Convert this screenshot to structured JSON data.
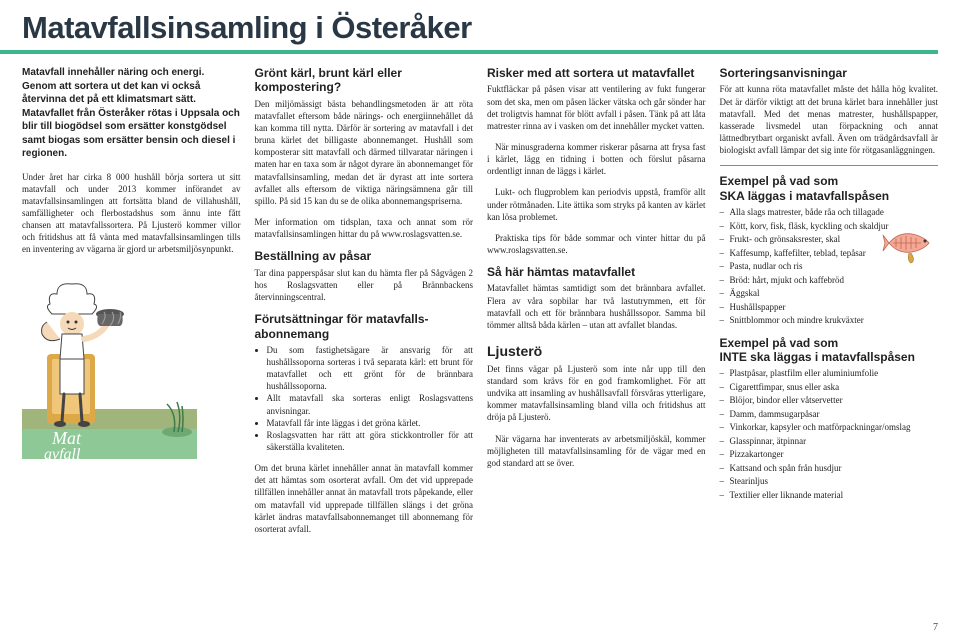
{
  "page_title": "Matavfallsinsamling i Österåker",
  "page_number": "7",
  "col1": {
    "intro": "Matavfall innehåller näring och energi. Genom att sortera ut det kan vi också återvinna det på ett klimatsmart sätt. Matavfallet från Österåker rötas i Uppsala och blir till biogödsel som ersätter konstgödsel samt biogas som ersätter bensin och diesel i regionen.",
    "p1": "Under året har cirka 8 000 hushåll börja sortera ut sitt matavfall och under 2013 kommer införandet av matavfallsinsamlingen att fortsätta bland de villahushåll, samfälligheter och flerbostadshus som ännu inte fått chansen att matavfallssortera. På Ljusterö kommer villor och fritidshus att få vänta med matavfallsinsamlingen tills en inventering av vägarna är gjord ur arbetsmiljösynpunkt."
  },
  "col2": {
    "h1": "Grönt kärl, brunt kärl eller kompostering?",
    "p1": "Den miljömässigt bästa behandlingsmetoden är att röta matavfallet eftersom både närings- och energiinnehållet då kan komma till nytta. Därför är sortering av matavfall i det bruna kärlet det billigaste abonnemanget. Hushåll som komposterar sitt matavfall och därmed tillvaratar näringen i maten har en taxa som är något dyrare än abonnemanget för matavfallsinsamling, medan det är dyrast att inte sortera avfallet alls eftersom de viktiga näringsämnena går till spillo. På sid 15 kan du se de olika abonnemangspriserna.",
    "p2": "Mer information om tidsplan, taxa och annat som rör matavfallsinsamlingen hittar du på www.roslagsvatten.se.",
    "h2": "Beställning av påsar",
    "p3": "Tar dina papperspåsar slut kan du hämta fler på Sågvägen 2 hos Roslagsvatten eller på Brännbackens återvinningscentral.",
    "h3": "Förutsättningar för matavfalls-abonnemang",
    "li1": "Du som fastighetsägare är ansvarig för att hushållssoporna sorteras i två separata kärl: ett brunt för matavfallet och ett grönt för de brännbara hushållssoporna.",
    "li2": "Allt matavfall ska sorteras enligt Roslagsvattens anvisningar.",
    "li3": "Matavfall får inte läggas i det gröna kärlet.",
    "li4": "Roslagsvatten har rätt att göra stickkontroller för att säkerställa kvaliteten.",
    "p4": "Om det bruna kärlet innehåller annat än matavfall kommer det att hämtas som osorterat avfall. Om det vid upprepade tillfällen innehåller annat än matavfall trots påpekande, eller om matavfall vid upprepade tillfällen slängs i det gröna kärlet ändras matavfallsabonnemanget till abonnemang för osorterat avfall."
  },
  "col3": {
    "h1": "Risker med att sortera ut matavfallet",
    "p1": "Fuktfläckar på påsen visar att ventilering av fukt fungerar som det ska, men om påsen läcker vätska och går sönder har det troligtvis hamnat för blött avfall i påsen. Tänk på att låta matrester rinna av i vasken om det innehåller mycket vatten.",
    "p2": "När minusgraderna kommer riskerar påsarna att frysa fast i kärlet, lägg en tidning i botten och förslut påsarna ordentligt innan de läggs i kärlet.",
    "p3": "Lukt- och flugproblem kan periodvis uppstå, framför allt under rötmånaden. Lite ättika som stryks på kanten av kärlet kan lösa problemet.",
    "p4": "Praktiska tips för både sommar och vinter hittar du på www.roslagsvatten.se.",
    "h2": "Så här hämtas matavfallet",
    "p5": "Matavfallet hämtas samtidigt som det brännbara avfallet. Flera av våra sopbilar har två lastutrymmen, ett för matavfall och ett för brännbara hushållssopor. Samma bil tömmer alltså båda kärlen – utan att avfallet blandas.",
    "h3": "Ljusterö",
    "p6": "Det finns vägar på Ljusterö som inte når upp till den standard som krävs för en god framkomlighet. För att undvika att insamling av hushållsavfall försvåras ytterligare, kommer matavfallsinsamling bland villa och fritidshus att dröja på Ljusterö.",
    "p7": "När vägarna har inventerats av arbetsmiljöskäl, kommer möjligheten till matavfallsinsamling för de vägar med en god standard att se över."
  },
  "col4": {
    "h1": "Sorteringsanvisningar",
    "p1": "För att kunna röta matavfallet måste det hålla hög kvalitet. Det är därför viktigt att det bruna kärlet bara innehåller just matavfall. Med det menas matrester, hushållspapper, kasserade livsmedel utan förpackning och annat lättnedbrytbart organiskt avfall. Även om trädgårdsavfall är biologiskt avfall lämpar det sig inte för rötgasanläggningen.",
    "h2_a": "Exempel på vad som",
    "h2_b": " läggas i matavfallspåsen",
    "ska": "SKA",
    "ska_items": [
      "Alla slags matrester, både råa och tillagade",
      "Kött, korv, fisk, fläsk, kyckling och skaldjur",
      "Frukt- och grönsaksrester, skal",
      "Kaffesump, kaffefilter, teblad, tepåsar",
      "Pasta, nudlar och ris",
      "Bröd: hårt, mjukt och kaffebröd",
      "Äggskal",
      "Hushållspapper",
      "Snittblommor och mindre krukväxter"
    ],
    "h3_a": "Exempel på vad som",
    "h3_b": " ska läggas i matavfallspåsen",
    "inte": "INTE",
    "inte_items": [
      "Plastpåsar, plastfilm eller aluminiumfolie",
      "Cigarettfimpar, snus eller aska",
      "Blöjor, bindor eller våtservetter",
      "Damm, dammsugarpåsar",
      "Vinkorkar, kapsyler och matförpackningar/omslag",
      "Glasspinnar, ätpinnar",
      "Pizzakartonger",
      "Kattsand och spån från husdjur",
      "Stearinljus",
      "Textilier eller liknande material"
    ]
  }
}
